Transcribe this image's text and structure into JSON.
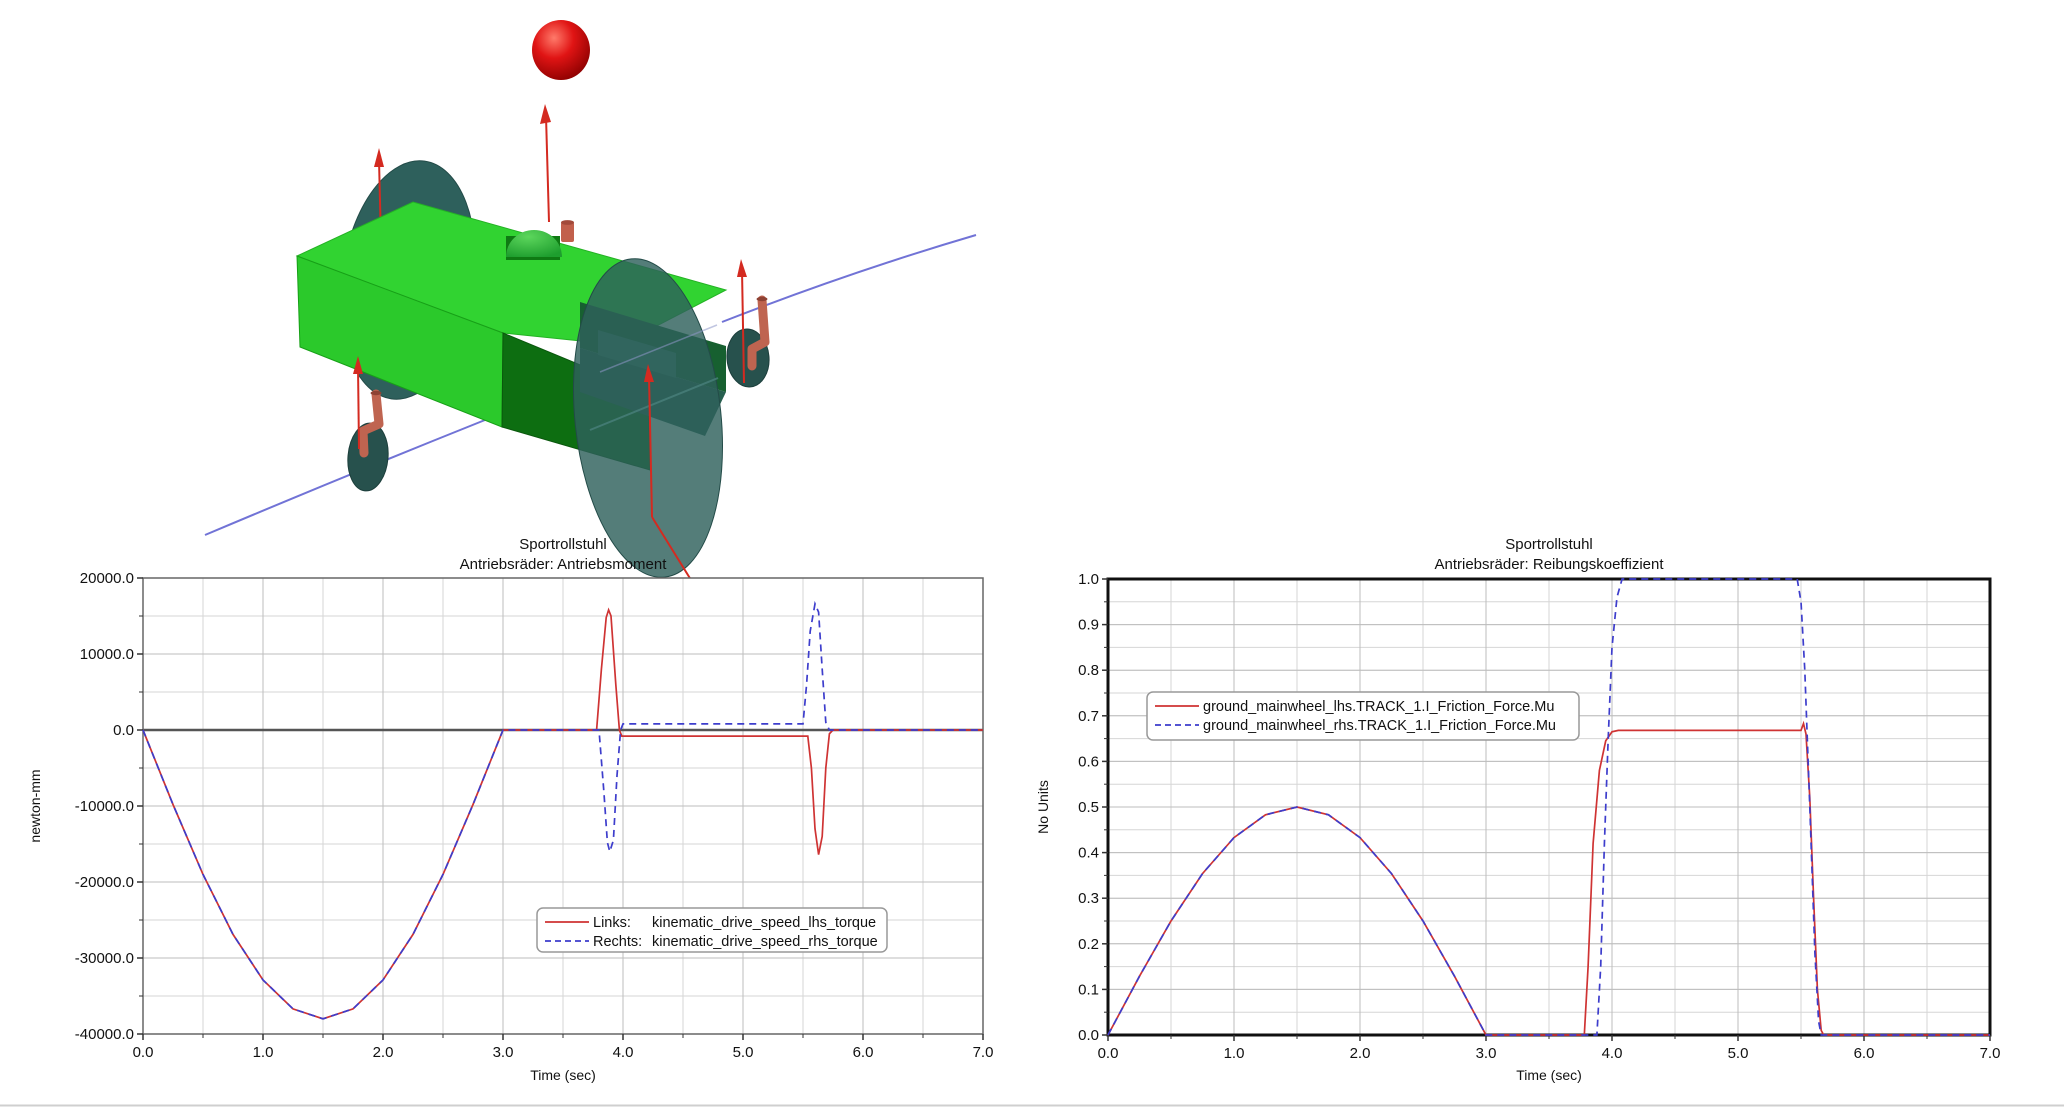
{
  "window": {
    "background": "#ffffff",
    "bottom_edge_line_color": "#cfcfcf"
  },
  "scene": {
    "model_name": "Sportrollstuhl (sports wheelchair) 3D model",
    "colors": {
      "body_front_green": "#2bc92b",
      "body_top_green": "#31d331",
      "body_side_dark_green": "#0d6e11",
      "body_end_teal_green": "#275f4f",
      "wheel_teal": "#2e605c",
      "caster_teal": "#27514d",
      "fork_salmon": "#bf6450",
      "arrow_red": "#d42a20",
      "track_blue": "#7173d6",
      "ball_red": "#d61414",
      "dome_green": "#2fae3a"
    }
  },
  "chart_data": [
    {
      "id": "left",
      "type": "line",
      "title": "Sportrollstuhl",
      "subtitle": "Antriebsräder: Antriebsmoment",
      "xlabel": "Time (sec)",
      "ylabel": "newton-mm",
      "xlim": [
        0,
        7
      ],
      "ylim": [
        -40000,
        20000
      ],
      "x_major": 1,
      "x_minor": 0.5,
      "y_major": 10000,
      "y_minor": 5000,
      "grid": true,
      "zero_line": 0,
      "legend_position": "lower-right-inside",
      "x_tick_labels": [
        "0.0",
        "1.0",
        "2.0",
        "3.0",
        "4.0",
        "5.0",
        "6.0",
        "7.0"
      ],
      "y_tick_labels": [
        "20000.0",
        "10000.0",
        "0.0",
        "-10000.0",
        "-20000.0",
        "-30000.0",
        "-40000.0"
      ],
      "series": [
        {
          "prefix": "Links:",
          "label": "kinematic_drive_speed_lhs_torque",
          "color": "#cf3333",
          "dash": "solid",
          "points": [
            [
              0,
              0
            ],
            [
              0.25,
              -9800
            ],
            [
              0.5,
              -19000
            ],
            [
              0.75,
              -26900
            ],
            [
              1,
              -32900
            ],
            [
              1.25,
              -36700
            ],
            [
              1.5,
              -38000
            ],
            [
              1.75,
              -36700
            ],
            [
              2,
              -32900
            ],
            [
              2.25,
              -26900
            ],
            [
              2.5,
              -19000
            ],
            [
              2.75,
              -9800
            ],
            [
              3,
              0
            ],
            [
              3.78,
              0
            ],
            [
              3.82,
              8000
            ],
            [
              3.86,
              14800
            ],
            [
              3.88,
              15800
            ],
            [
              3.9,
              15000
            ],
            [
              3.94,
              6000
            ],
            [
              3.97,
              0
            ],
            [
              3.99,
              -800
            ],
            [
              5.54,
              -800
            ],
            [
              5.57,
              -5000
            ],
            [
              5.6,
              -13000
            ],
            [
              5.63,
              -16400
            ],
            [
              5.66,
              -14000
            ],
            [
              5.69,
              -5000
            ],
            [
              5.72,
              -500
            ],
            [
              5.75,
              0
            ],
            [
              7,
              0
            ]
          ]
        },
        {
          "prefix": "Rechts:",
          "label": "kinematic_drive_speed_rhs_torque",
          "color": "#3d3dcc",
          "dash": "dashed",
          "points": [
            [
              0,
              0
            ],
            [
              0.25,
              -9800
            ],
            [
              0.5,
              -19000
            ],
            [
              0.75,
              -26900
            ],
            [
              1,
              -32900
            ],
            [
              1.25,
              -36700
            ],
            [
              1.5,
              -38000
            ],
            [
              1.75,
              -36700
            ],
            [
              2,
              -32900
            ],
            [
              2.25,
              -26900
            ],
            [
              2.5,
              -19000
            ],
            [
              2.75,
              -9800
            ],
            [
              3,
              0
            ],
            [
              3.8,
              0
            ],
            [
              3.84,
              -8000
            ],
            [
              3.87,
              -14800
            ],
            [
              3.89,
              -16000
            ],
            [
              3.92,
              -14500
            ],
            [
              3.95,
              -6000
            ],
            [
              3.98,
              0
            ],
            [
              4,
              800
            ],
            [
              5.5,
              800
            ],
            [
              5.53,
              6000
            ],
            [
              5.56,
              13000
            ],
            [
              5.6,
              16600
            ],
            [
              5.63,
              15500
            ],
            [
              5.66,
              8000
            ],
            [
              5.69,
              1000
            ],
            [
              5.72,
              0
            ],
            [
              7,
              0
            ]
          ]
        }
      ]
    },
    {
      "id": "right",
      "type": "line",
      "title": "Sportrollstuhl",
      "subtitle": "Antriebsräder: Reibungskoeffizient",
      "xlabel": "Time (sec)",
      "ylabel": "No Units",
      "xlim": [
        0,
        7
      ],
      "ylim": [
        0,
        1
      ],
      "x_major": 1,
      "x_minor": 0.5,
      "y_major": 0.1,
      "y_minor": 0.05,
      "grid": true,
      "legend_position": "upper-left-inside",
      "x_tick_labels": [
        "0.0",
        "1.0",
        "2.0",
        "3.0",
        "4.0",
        "5.0",
        "6.0",
        "7.0"
      ],
      "y_tick_labels": [
        "1.0",
        "0.9",
        "0.8",
        "0.7",
        "0.6",
        "0.5",
        "0.4",
        "0.3",
        "0.2",
        "0.1",
        "0.0"
      ],
      "series": [
        {
          "prefix": "",
          "label": "ground_mainwheel_lhs.TRACK_1.I_Friction_Force.Mu",
          "color": "#cf3333",
          "dash": "solid",
          "points": [
            [
              0,
              0
            ],
            [
              0.25,
              0.129
            ],
            [
              0.5,
              0.25
            ],
            [
              0.75,
              0.354
            ],
            [
              1,
              0.433
            ],
            [
              1.25,
              0.483
            ],
            [
              1.5,
              0.5
            ],
            [
              1.75,
              0.483
            ],
            [
              2,
              0.433
            ],
            [
              2.25,
              0.354
            ],
            [
              2.5,
              0.25
            ],
            [
              2.75,
              0.129
            ],
            [
              3,
              0
            ],
            [
              3.78,
              0
            ],
            [
              3.81,
              0.15
            ],
            [
              3.85,
              0.42
            ],
            [
              3.9,
              0.58
            ],
            [
              3.95,
              0.645
            ],
            [
              4,
              0.665
            ],
            [
              4.05,
              0.668
            ],
            [
              5.5,
              0.668
            ],
            [
              5.52,
              0.683
            ],
            [
              5.54,
              0.66
            ],
            [
              5.57,
              0.52
            ],
            [
              5.6,
              0.3
            ],
            [
              5.63,
              0.1
            ],
            [
              5.66,
              0.01
            ],
            [
              5.68,
              0
            ],
            [
              7,
              0
            ]
          ]
        },
        {
          "prefix": "",
          "label": "ground_mainwheel_rhs.TRACK_1.I_Friction_Force.Mu",
          "color": "#3d3dcc",
          "dash": "dashed",
          "points": [
            [
              0,
              0
            ],
            [
              0.25,
              0.129
            ],
            [
              0.5,
              0.25
            ],
            [
              0.75,
              0.354
            ],
            [
              1,
              0.433
            ],
            [
              1.25,
              0.483
            ],
            [
              1.5,
              0.5
            ],
            [
              1.75,
              0.483
            ],
            [
              2,
              0.433
            ],
            [
              2.25,
              0.354
            ],
            [
              2.5,
              0.25
            ],
            [
              2.75,
              0.129
            ],
            [
              3,
              0
            ],
            [
              3.88,
              0
            ],
            [
              3.91,
              0.15
            ],
            [
              3.94,
              0.42
            ],
            [
              3.97,
              0.65
            ],
            [
              4,
              0.85
            ],
            [
              4.04,
              0.96
            ],
            [
              4.08,
              1.0
            ],
            [
              5.47,
              1.0
            ],
            [
              5.5,
              0.95
            ],
            [
              5.53,
              0.8
            ],
            [
              5.57,
              0.5
            ],
            [
              5.61,
              0.18
            ],
            [
              5.64,
              0.03
            ],
            [
              5.66,
              0
            ],
            [
              7,
              0
            ]
          ]
        }
      ]
    }
  ]
}
